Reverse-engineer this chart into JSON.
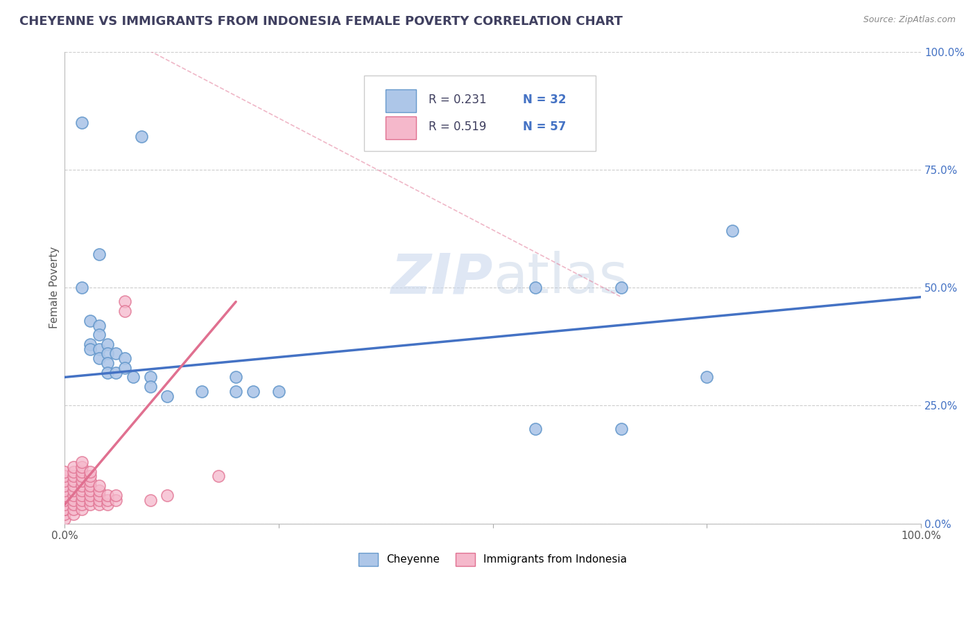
{
  "title": "CHEYENNE VS IMMIGRANTS FROM INDONESIA FEMALE POVERTY CORRELATION CHART",
  "source": "Source: ZipAtlas.com",
  "ylabel": "Female Poverty",
  "xlim": [
    0.0,
    1.0
  ],
  "ylim": [
    0.0,
    1.0
  ],
  "ytick_labels": [
    "0.0%",
    "25.0%",
    "50.0%",
    "75.0%",
    "100.0%"
  ],
  "ytick_positions": [
    0.0,
    0.25,
    0.5,
    0.75,
    1.0
  ],
  "xtick_labels": [
    "0.0%",
    "",
    "",
    "",
    "100.0%"
  ],
  "xtick_positions": [
    0.0,
    0.25,
    0.5,
    0.75,
    1.0
  ],
  "watermark_zip": "ZIP",
  "watermark_atlas": "atlas",
  "cheyenne_color": "#adc6e8",
  "cheyenne_edge": "#6699cc",
  "indonesia_color": "#f5b8cb",
  "indonesia_edge": "#e07090",
  "line_cheyenne_color": "#4472c4",
  "line_indonesia_color": "#e07090",
  "grid_color": "#cccccc",
  "background_color": "#ffffff",
  "title_color": "#404060",
  "source_color": "#888888",
  "tick_color": "#4472c4",
  "cheyenne_points": [
    [
      0.02,
      0.85
    ],
    [
      0.09,
      0.82
    ],
    [
      0.04,
      0.57
    ],
    [
      0.02,
      0.5
    ],
    [
      0.03,
      0.43
    ],
    [
      0.04,
      0.42
    ],
    [
      0.04,
      0.4
    ],
    [
      0.03,
      0.38
    ],
    [
      0.03,
      0.37
    ],
    [
      0.04,
      0.37
    ],
    [
      0.04,
      0.35
    ],
    [
      0.05,
      0.38
    ],
    [
      0.05,
      0.36
    ],
    [
      0.05,
      0.34
    ],
    [
      0.05,
      0.32
    ],
    [
      0.06,
      0.36
    ],
    [
      0.06,
      0.32
    ],
    [
      0.07,
      0.35
    ],
    [
      0.07,
      0.33
    ],
    [
      0.08,
      0.31
    ],
    [
      0.1,
      0.31
    ],
    [
      0.1,
      0.29
    ],
    [
      0.12,
      0.27
    ],
    [
      0.16,
      0.28
    ],
    [
      0.2,
      0.31
    ],
    [
      0.2,
      0.28
    ],
    [
      0.22,
      0.28
    ],
    [
      0.25,
      0.28
    ],
    [
      0.55,
      0.5
    ],
    [
      0.65,
      0.5
    ],
    [
      0.78,
      0.62
    ],
    [
      0.75,
      0.31
    ],
    [
      0.55,
      0.2
    ],
    [
      0.65,
      0.2
    ]
  ],
  "indonesia_points": [
    [
      0.0,
      0.01
    ],
    [
      0.0,
      0.02
    ],
    [
      0.0,
      0.03
    ],
    [
      0.0,
      0.03
    ],
    [
      0.0,
      0.04
    ],
    [
      0.0,
      0.05
    ],
    [
      0.0,
      0.06
    ],
    [
      0.0,
      0.07
    ],
    [
      0.0,
      0.08
    ],
    [
      0.0,
      0.09
    ],
    [
      0.0,
      0.1
    ],
    [
      0.0,
      0.11
    ],
    [
      0.01,
      0.02
    ],
    [
      0.01,
      0.03
    ],
    [
      0.01,
      0.04
    ],
    [
      0.01,
      0.05
    ],
    [
      0.01,
      0.06
    ],
    [
      0.01,
      0.07
    ],
    [
      0.01,
      0.08
    ],
    [
      0.01,
      0.09
    ],
    [
      0.01,
      0.1
    ],
    [
      0.01,
      0.11
    ],
    [
      0.01,
      0.12
    ],
    [
      0.02,
      0.03
    ],
    [
      0.02,
      0.04
    ],
    [
      0.02,
      0.05
    ],
    [
      0.02,
      0.06
    ],
    [
      0.02,
      0.07
    ],
    [
      0.02,
      0.08
    ],
    [
      0.02,
      0.09
    ],
    [
      0.02,
      0.1
    ],
    [
      0.02,
      0.11
    ],
    [
      0.02,
      0.12
    ],
    [
      0.02,
      0.13
    ],
    [
      0.03,
      0.04
    ],
    [
      0.03,
      0.05
    ],
    [
      0.03,
      0.06
    ],
    [
      0.03,
      0.07
    ],
    [
      0.03,
      0.08
    ],
    [
      0.03,
      0.09
    ],
    [
      0.03,
      0.1
    ],
    [
      0.03,
      0.11
    ],
    [
      0.04,
      0.04
    ],
    [
      0.04,
      0.05
    ],
    [
      0.04,
      0.06
    ],
    [
      0.04,
      0.07
    ],
    [
      0.04,
      0.08
    ],
    [
      0.05,
      0.04
    ],
    [
      0.05,
      0.05
    ],
    [
      0.05,
      0.06
    ],
    [
      0.06,
      0.05
    ],
    [
      0.06,
      0.06
    ],
    [
      0.07,
      0.47
    ],
    [
      0.07,
      0.45
    ],
    [
      0.1,
      0.05
    ],
    [
      0.12,
      0.06
    ],
    [
      0.18,
      0.1
    ]
  ],
  "cheyenne_line_x": [
    0.0,
    1.0
  ],
  "cheyenne_line_y": [
    0.31,
    0.48
  ],
  "indonesia_line_x": [
    0.0,
    0.2
  ],
  "indonesia_line_y": [
    0.04,
    0.47
  ],
  "dashed_line_x": [
    0.08,
    0.65
  ],
  "dashed_line_y": [
    1.02,
    0.48
  ]
}
